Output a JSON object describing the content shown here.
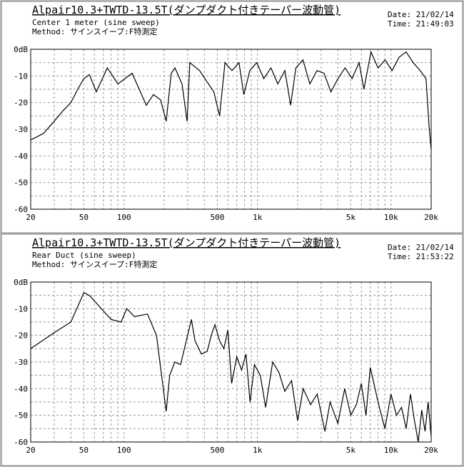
{
  "chart_data": [
    {
      "type": "line",
      "title": "Alpair10.3+TWTD-13.5T(ダンプダクト付きテーパー波動管)",
      "subtitle": "Center 1 meter (sine sweep)",
      "method": "Method: サインスイープ:F特測定",
      "date": "Date: 21/02/14",
      "time": "Time: 21:49:03",
      "xscale": "log",
      "xlim": [
        20,
        20000
      ],
      "ylim": [
        -60,
        0
      ],
      "xticks": [
        20,
        50,
        100,
        500,
        {
          "value": 1000,
          "label": "1k"
        },
        {
          "value": 5000,
          "label": "5k"
        },
        {
          "value": 10000,
          "label": "10k"
        },
        {
          "value": 20000,
          "label": "20k"
        }
      ],
      "xminorticks": [
        30,
        40,
        60,
        70,
        80,
        90,
        200,
        300,
        400,
        600,
        700,
        800,
        900,
        2000,
        3000,
        4000,
        6000,
        7000,
        8000,
        9000
      ],
      "yticks": [
        {
          "value": 0,
          "label": "0dB"
        },
        -10,
        -20,
        -30,
        -40,
        -50,
        -60
      ],
      "yminorticks": [
        -5,
        -15,
        -25,
        -35,
        -45,
        -55
      ],
      "grid": true,
      "color": "#000000",
      "x": [
        20,
        22,
        25,
        30,
        35,
        40,
        45,
        50,
        55,
        62,
        75,
        90,
        115,
        147,
        166,
        188,
        207,
        226,
        241,
        272,
        297,
        311,
        369,
        416,
        471,
        520,
        571,
        644,
        727,
        790,
        875,
        988,
        1115,
        1260,
        1421,
        1605,
        1770,
        1940,
        2190,
        2470,
        2790,
        3150,
        3550,
        4010,
        4530,
        5110,
        5770,
        6270,
        7080,
        8000,
        9030,
        10190,
        11500,
        12980,
        14660,
        16540,
        18300,
        19300,
        20000
      ],
      "values": [
        -34,
        -33,
        -31.5,
        -27,
        -23,
        -20,
        -15,
        -11,
        -9.5,
        -16,
        -7,
        -13,
        -9,
        -21,
        -17,
        -19,
        -27,
        -9,
        -7,
        -13,
        -27,
        -5,
        -8,
        -12,
        -16,
        -25,
        -5,
        -8,
        -5,
        -17,
        -8,
        -5,
        -11,
        -7,
        -13,
        -8,
        -21,
        -7,
        -4,
        -13,
        -8,
        -9,
        -16,
        -11,
        -7,
        -11,
        -5,
        -15,
        -1,
        -7,
        -4,
        -8,
        -3,
        -1,
        -5,
        -8,
        -11,
        -29,
        -37.5
      ]
    },
    {
      "type": "line",
      "title": "Alpair10.3+TWTD-13.5T(ダンプダクト付きテーパー波動管)",
      "subtitle": "Rear Duct (sine sweep)",
      "method": "Method: サインスイープ:F特測定",
      "date": "Date: 21/02/14",
      "time": "Time: 21:53:22",
      "xscale": "log",
      "xlim": [
        20,
        20000
      ],
      "ylim": [
        -60,
        0
      ],
      "xticks": [
        20,
        50,
        100,
        500,
        {
          "value": 1000,
          "label": "1k"
        },
        {
          "value": 5000,
          "label": "5k"
        },
        {
          "value": 10000,
          "label": "10k"
        },
        {
          "value": 20000,
          "label": "20k"
        }
      ],
      "xminorticks": [
        30,
        40,
        60,
        70,
        80,
        90,
        200,
        300,
        400,
        600,
        700,
        800,
        900,
        2000,
        3000,
        4000,
        6000,
        7000,
        8000,
        9000
      ],
      "yticks": [
        {
          "value": 0,
          "label": "0dB"
        },
        -10,
        -20,
        -30,
        -40,
        -50,
        -60
      ],
      "yminorticks": [
        -5,
        -15,
        -25,
        -35,
        -45,
        -55
      ],
      "grid": true,
      "color": "#000000",
      "x": [
        20,
        30,
        40,
        50,
        55,
        65,
        80,
        95,
        105,
        120,
        150,
        175,
        207,
        220,
        240,
        265,
        320,
        340,
        380,
        420,
        450,
        480,
        520,
        560,
        600,
        640,
        700,
        760,
        820,
        880,
        950,
        1050,
        1150,
        1300,
        1450,
        1600,
        1800,
        2000,
        2200,
        2500,
        2800,
        3200,
        3500,
        4000,
        4500,
        5000,
        5500,
        6000,
        6500,
        7000,
        8000,
        9000,
        10000,
        11000,
        12000,
        13000,
        14000,
        15000,
        16000,
        17000,
        18000,
        19000,
        20000
      ],
      "values": [
        -25,
        -19,
        -15,
        -4,
        -5,
        -9,
        -14,
        -15,
        -10,
        -13,
        -12,
        -20,
        -48.5,
        -35,
        -30,
        -31,
        -14,
        -22,
        -27,
        -26,
        -20,
        -16,
        -22,
        -25,
        -18,
        -38,
        -28,
        -33,
        -27,
        -45,
        -31,
        -35,
        -47,
        -30,
        -34,
        -41,
        -37,
        -52,
        -40,
        -46,
        -42,
        -56,
        -45,
        -53,
        -40,
        -50,
        -46,
        -38,
        -50,
        -32,
        -45,
        -55,
        -42,
        -50,
        -47,
        -55,
        -42,
        -52,
        -60,
        -48,
        -56,
        -45,
        -58
      ]
    }
  ]
}
